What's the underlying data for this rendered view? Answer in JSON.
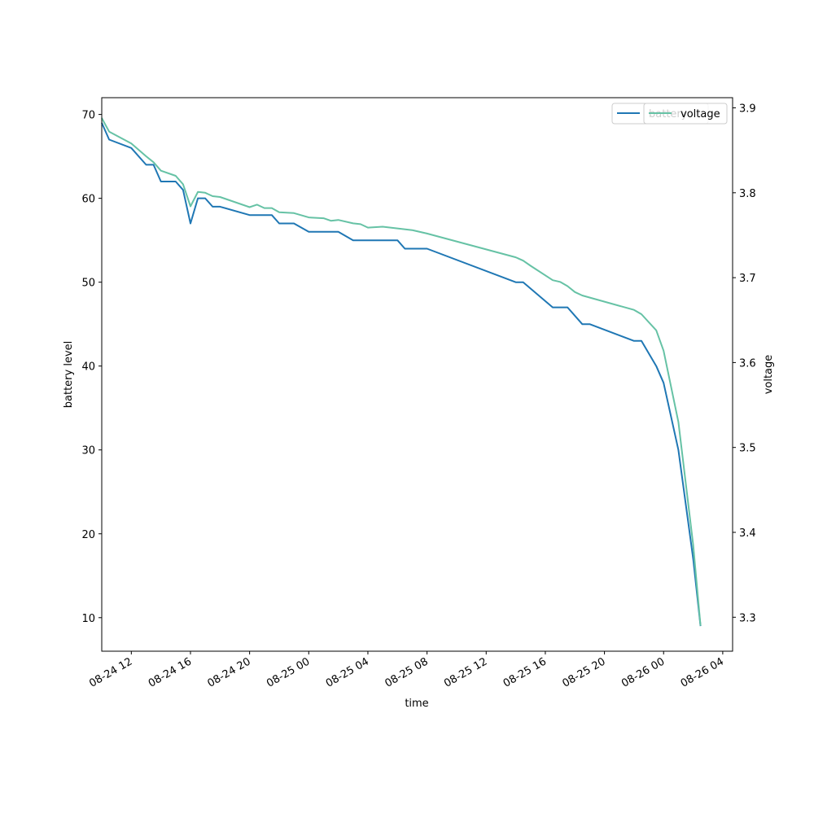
{
  "chart_data": {
    "type": "line",
    "title": "",
    "xlabel": "time",
    "ylabel": "battery level",
    "y2label": "voltage",
    "xlim": [
      "2024-08-24T10:00",
      "2024-08-26T04:40"
    ],
    "ylim": [
      6,
      72
    ],
    "y2lim": [
      3.26,
      3.912
    ],
    "x_ticks": [
      {
        "t": "2024-08-24T12:00",
        "label": "08-24 12"
      },
      {
        "t": "2024-08-24T16:00",
        "label": "08-24 16"
      },
      {
        "t": "2024-08-24T20:00",
        "label": "08-24 20"
      },
      {
        "t": "2024-08-25T00:00",
        "label": "08-25 00"
      },
      {
        "t": "2024-08-25T04:00",
        "label": "08-25 04"
      },
      {
        "t": "2024-08-25T08:00",
        "label": "08-25 08"
      },
      {
        "t": "2024-08-25T12:00",
        "label": "08-25 12"
      },
      {
        "t": "2024-08-25T16:00",
        "label": "08-25 16"
      },
      {
        "t": "2024-08-25T20:00",
        "label": "08-25 20"
      },
      {
        "t": "2024-08-26T00:00",
        "label": "08-26 00"
      },
      {
        "t": "2024-08-26T04:00",
        "label": "08-26 04"
      }
    ],
    "y_ticks": [
      {
        "v": 10,
        "label": "10"
      },
      {
        "v": 20,
        "label": "20"
      },
      {
        "v": 30,
        "label": "30"
      },
      {
        "v": 40,
        "label": "40"
      },
      {
        "v": 50,
        "label": "50"
      },
      {
        "v": 60,
        "label": "60"
      },
      {
        "v": 70,
        "label": "70"
      }
    ],
    "y2_ticks": [
      {
        "v": 3.3,
        "label": "3.3"
      },
      {
        "v": 3.4,
        "label": "3.4"
      },
      {
        "v": 3.5,
        "label": "3.5"
      },
      {
        "v": 3.6,
        "label": "3.6"
      },
      {
        "v": 3.7,
        "label": "3.7"
      },
      {
        "v": 3.8,
        "label": "3.8"
      },
      {
        "v": 3.9,
        "label": "3.9"
      }
    ],
    "grid": false,
    "legend_placement": "top-right",
    "series": [
      {
        "name": "battery",
        "axis": "left",
        "color": "#1f77b4",
        "points": [
          [
            "2024-08-24T10:00",
            69
          ],
          [
            "2024-08-24T10:30",
            67
          ],
          [
            "2024-08-24T12:00",
            66
          ],
          [
            "2024-08-24T13:00",
            64
          ],
          [
            "2024-08-24T13:30",
            64
          ],
          [
            "2024-08-24T14:00",
            62
          ],
          [
            "2024-08-24T15:00",
            62
          ],
          [
            "2024-08-24T15:30",
            61
          ],
          [
            "2024-08-24T16:00",
            57
          ],
          [
            "2024-08-24T16:30",
            60
          ],
          [
            "2024-08-24T17:00",
            60
          ],
          [
            "2024-08-24T17:30",
            59
          ],
          [
            "2024-08-24T18:00",
            59
          ],
          [
            "2024-08-24T20:00",
            58
          ],
          [
            "2024-08-24T21:30",
            58
          ],
          [
            "2024-08-24T22:00",
            57
          ],
          [
            "2024-08-24T23:00",
            57
          ],
          [
            "2024-08-25T00:00",
            56
          ],
          [
            "2024-08-25T02:00",
            56
          ],
          [
            "2024-08-25T03:00",
            55
          ],
          [
            "2024-08-25T06:00",
            55
          ],
          [
            "2024-08-25T06:30",
            54
          ],
          [
            "2024-08-25T08:00",
            54
          ],
          [
            "2024-08-25T14:00",
            50
          ],
          [
            "2024-08-25T14:30",
            50
          ],
          [
            "2024-08-25T16:30",
            47
          ],
          [
            "2024-08-25T17:30",
            47
          ],
          [
            "2024-08-25T18:30",
            45
          ],
          [
            "2024-08-25T19:00",
            45
          ],
          [
            "2024-08-25T22:00",
            43
          ],
          [
            "2024-08-25T22:30",
            43
          ],
          [
            "2024-08-25T23:30",
            40
          ],
          [
            "2024-08-26T00:00",
            38
          ],
          [
            "2024-08-26T01:00",
            30
          ],
          [
            "2024-08-26T02:00",
            17
          ],
          [
            "2024-08-26T02:30",
            9
          ]
        ]
      },
      {
        "name": "voltage",
        "axis": "right",
        "color": "#66c2a5",
        "points": [
          [
            "2024-08-24T10:00",
            3.888
          ],
          [
            "2024-08-24T10:30",
            3.872
          ],
          [
            "2024-08-24T12:00",
            3.858
          ],
          [
            "2024-08-24T13:00",
            3.843
          ],
          [
            "2024-08-24T13:30",
            3.836
          ],
          [
            "2024-08-24T14:00",
            3.826
          ],
          [
            "2024-08-24T15:00",
            3.82
          ],
          [
            "2024-08-24T15:30",
            3.81
          ],
          [
            "2024-08-24T16:00",
            3.784
          ],
          [
            "2024-08-24T16:30",
            3.801
          ],
          [
            "2024-08-24T17:00",
            3.8
          ],
          [
            "2024-08-24T17:30",
            3.796
          ],
          [
            "2024-08-24T18:00",
            3.795
          ],
          [
            "2024-08-24T20:00",
            3.783
          ],
          [
            "2024-08-24T20:30",
            3.786
          ],
          [
            "2024-08-24T21:00",
            3.782
          ],
          [
            "2024-08-24T21:30",
            3.782
          ],
          [
            "2024-08-24T22:00",
            3.777
          ],
          [
            "2024-08-24T23:00",
            3.776
          ],
          [
            "2024-08-25T00:00",
            3.771
          ],
          [
            "2024-08-25T01:00",
            3.77
          ],
          [
            "2024-08-25T01:30",
            3.767
          ],
          [
            "2024-08-25T02:00",
            3.768
          ],
          [
            "2024-08-25T03:00",
            3.764
          ],
          [
            "2024-08-25T03:30",
            3.763
          ],
          [
            "2024-08-25T04:00",
            3.759
          ],
          [
            "2024-08-25T05:00",
            3.76
          ],
          [
            "2024-08-25T06:00",
            3.758
          ],
          [
            "2024-08-25T07:00",
            3.756
          ],
          [
            "2024-08-25T08:00",
            3.752
          ],
          [
            "2024-08-25T14:00",
            3.724
          ],
          [
            "2024-08-25T14:30",
            3.72
          ],
          [
            "2024-08-25T15:00",
            3.714
          ],
          [
            "2024-08-25T16:30",
            3.697
          ],
          [
            "2024-08-25T17:00",
            3.695
          ],
          [
            "2024-08-25T17:30",
            3.69
          ],
          [
            "2024-08-25T18:00",
            3.683
          ],
          [
            "2024-08-25T18:30",
            3.679
          ],
          [
            "2024-08-25T22:00",
            3.662
          ],
          [
            "2024-08-25T22:30",
            3.657
          ],
          [
            "2024-08-25T23:30",
            3.638
          ],
          [
            "2024-08-26T00:00",
            3.614
          ],
          [
            "2024-08-26T01:00",
            3.53
          ],
          [
            "2024-08-26T02:00",
            3.385
          ],
          [
            "2024-08-26T02:30",
            3.29
          ]
        ]
      }
    ]
  }
}
